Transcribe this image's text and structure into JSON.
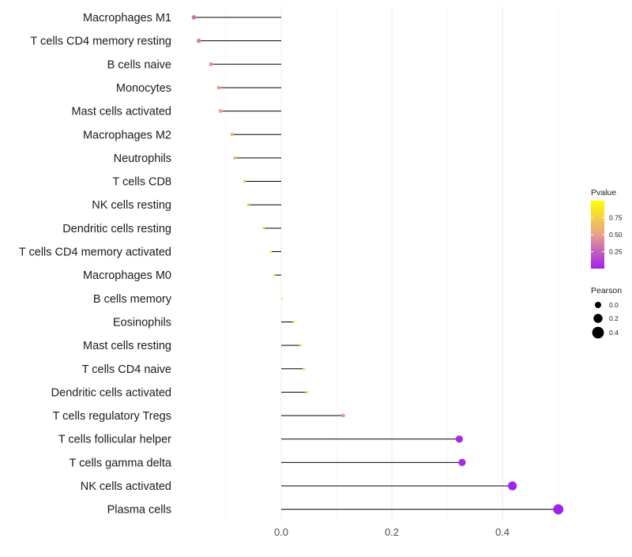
{
  "chart_data": {
    "type": "lollipop",
    "title": "",
    "xlabel": "",
    "ylabel": "",
    "xlim": [
      -0.1,
      0.52
    ],
    "x_ticks": [
      0.0,
      0.2,
      0.4
    ],
    "x_tick_labels": [
      "0.0",
      "0.2",
      "0.4"
    ],
    "grid": true,
    "colors": {
      "low": "#a020f0",
      "mid": "#e8a08a",
      "high": "#ffff00",
      "stem": "#000000",
      "grid": "#ebebeb"
    },
    "points": [
      {
        "label": "Macrophages M1",
        "value": -0.158,
        "pvalue": 0.32
      },
      {
        "label": "T cells CD4 memory resting",
        "value": -0.149,
        "pvalue": 0.37
      },
      {
        "label": "B cells naive",
        "value": -0.127,
        "pvalue": 0.45
      },
      {
        "label": "Monocytes",
        "value": -0.113,
        "pvalue": 0.5
      },
      {
        "label": "Mast cells activated",
        "value": -0.11,
        "pvalue": 0.51
      },
      {
        "label": "Macrophages M2",
        "value": -0.089,
        "pvalue": 0.58
      },
      {
        "label": "Neutrophils",
        "value": -0.084,
        "pvalue": 0.6
      },
      {
        "label": "T cells CD8",
        "value": -0.066,
        "pvalue": 0.68
      },
      {
        "label": "NK cells resting",
        "value": -0.059,
        "pvalue": 0.7
      },
      {
        "label": "Dendritic cells resting",
        "value": -0.032,
        "pvalue": 0.84
      },
      {
        "label": "T cells CD4 memory activated",
        "value": -0.019,
        "pvalue": 0.9
      },
      {
        "label": "Macrophages M0",
        "value": -0.013,
        "pvalue": 0.93
      },
      {
        "label": "B cells memory",
        "value": 0.002,
        "pvalue": 0.99
      },
      {
        "label": "Eosinophils",
        "value": 0.023,
        "pvalue": 0.88
      },
      {
        "label": "Mast cells resting",
        "value": 0.035,
        "pvalue": 0.82
      },
      {
        "label": "T cells CD4 naive",
        "value": 0.041,
        "pvalue": 0.79
      },
      {
        "label": "Dendritic cells activated",
        "value": 0.046,
        "pvalue": 0.76
      },
      {
        "label": "T cells regulatory  Tregs ",
        "value": 0.112,
        "pvalue": 0.48
      },
      {
        "label": "T cells follicular helper",
        "value": 0.322,
        "pvalue": 0.04
      },
      {
        "label": "T cells gamma delta",
        "value": 0.327,
        "pvalue": 0.04
      },
      {
        "label": "NK cells activated",
        "value": 0.418,
        "pvalue": 0.01
      },
      {
        "label": "Plasma cells",
        "value": 0.501,
        "pvalue": 0.005
      }
    ],
    "legend": {
      "placement": "right",
      "color": {
        "title": "Pvalue",
        "ticks": [
          0.75,
          0.5,
          0.25
        ],
        "tick_labels": [
          "0.75",
          "0.50",
          "0.25"
        ]
      },
      "size": {
        "title": "Pearson",
        "values": [
          0.0,
          0.2,
          0.4
        ],
        "labels": [
          "0.0",
          "0.2",
          "0.4"
        ]
      }
    }
  }
}
